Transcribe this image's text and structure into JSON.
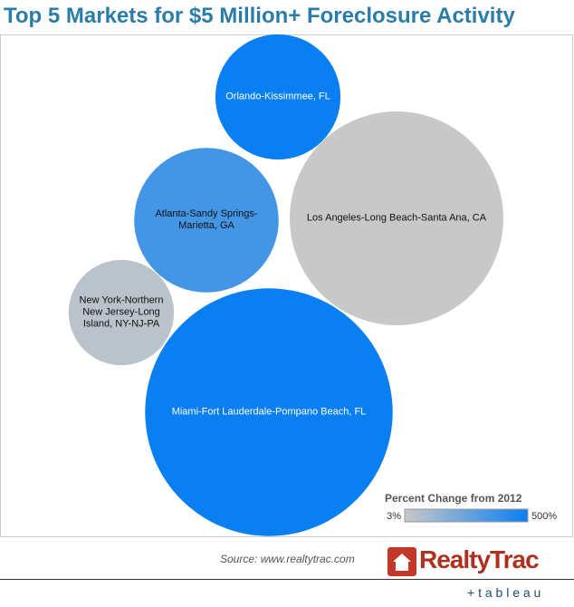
{
  "chart_data": {
    "type": "packed-bubble",
    "title": "Top 5 Markets for $5 Million+ Foreclosure Activity",
    "categories": [
      "Orlando-Kissimmee, FL",
      "Los Angeles-Long Beach-Santa Ana, CA",
      "Atlanta-Sandy Springs-Marietta, GA",
      "New York-Northern New Jersey-Long Island, NY-NJ-PA",
      "Miami-Fort Lauderdale-Pompano Beach, FL"
    ],
    "values": [
      24,
      70,
      32,
      17,
      94
    ],
    "color_values": [
      500,
      3,
      350,
      40,
      500
    ],
    "color_legend_title": "Percent Change from 2012",
    "color_range": [
      "#c8c8c8",
      "#0a7ff2"
    ],
    "color_lim": [
      3,
      500
    ],
    "color_ticks": [
      {
        "value": 3,
        "label": "3%"
      },
      {
        "value": 500,
        "label": "500%"
      }
    ],
    "source": "Source: www.realtytrac.com",
    "logo": "RealtyTrac",
    "footer_logo": "+ t a b l e a u"
  }
}
